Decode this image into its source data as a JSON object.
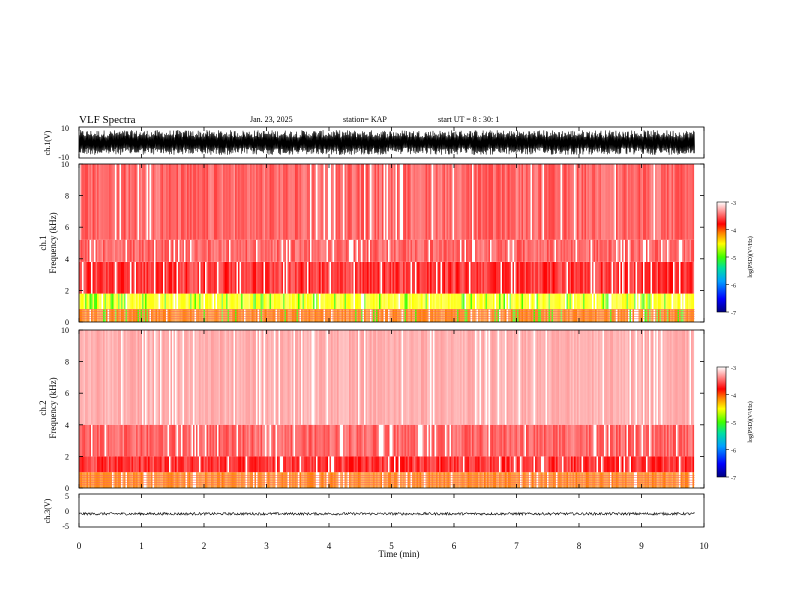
{
  "header": {
    "title": "VLF Spectra",
    "date": "Jan. 23, 2025",
    "station": "station= KAP",
    "start_time": "start UT =  8 : 30: 1"
  },
  "colorbar": {
    "label": "log(PSD)(V²/Hz)",
    "ticks": [
      "-3",
      "-4",
      "-5",
      "-6",
      "-7"
    ],
    "colors": [
      "#000080",
      "#0000ff",
      "#00a0ff",
      "#00e0a0",
      "#40ff00",
      "#ffff00",
      "#ff8000",
      "#ff0000",
      "#ff8080",
      "#ffffff"
    ]
  },
  "chart_data": [
    {
      "type": "line",
      "name": "ch1-waveform",
      "ylabel": "ch.1(V)",
      "ylim": [
        -10,
        10
      ],
      "yticks": [
        "10",
        "-10"
      ],
      "xlim": [
        0,
        10
      ],
      "description_values": {
        "amplitude_min": -8,
        "amplitude_max": 8
      }
    },
    {
      "type": "heatmap",
      "name": "ch1-spectrogram",
      "ylabel": "ch.1\nFrequency (kHz)",
      "ylim": [
        0,
        10
      ],
      "yticks": [
        "10",
        "8",
        "6",
        "4",
        "2",
        "0"
      ],
      "xlim": [
        0,
        9.85
      ],
      "bands_khz": [
        {
          "from": 0.0,
          "to": 0.8,
          "level": -4.6
        },
        {
          "from": 0.8,
          "to": 1.8,
          "level": -4.9
        },
        {
          "from": 1.8,
          "to": 3.8,
          "level": -4.2
        },
        {
          "from": 3.8,
          "to": 5.2,
          "level": -3.9
        },
        {
          "from": 5.2,
          "to": 10.0,
          "level": -3.6
        }
      ]
    },
    {
      "type": "heatmap",
      "name": "ch2-spectrogram",
      "ylabel": "ch.2\nFrequency (kHz)",
      "ylim": [
        0,
        10
      ],
      "yticks": [
        "10",
        "8",
        "6",
        "4",
        "2",
        "0"
      ],
      "xlim": [
        0,
        9.85
      ],
      "bands_khz": [
        {
          "from": 0.0,
          "to": 1.0,
          "level": -4.5
        },
        {
          "from": 1.0,
          "to": 2.0,
          "level": -4.2
        },
        {
          "from": 2.0,
          "to": 4.0,
          "level": -3.6
        },
        {
          "from": 4.0,
          "to": 10.0,
          "level": -3.3
        }
      ]
    },
    {
      "type": "line",
      "name": "ch3-waveform",
      "ylabel": "ch.3(V)",
      "ylim": [
        -5,
        5
      ],
      "yticks": [
        "5",
        "0",
        "-5"
      ],
      "xlim": [
        0,
        10
      ],
      "xlabel": "Time (min)",
      "xticks": [
        "0",
        "1",
        "2",
        "3",
        "4",
        "5",
        "6",
        "7",
        "8",
        "9",
        "10"
      ],
      "description_values": {
        "amplitude_min": -2,
        "amplitude_max": 0
      }
    }
  ]
}
